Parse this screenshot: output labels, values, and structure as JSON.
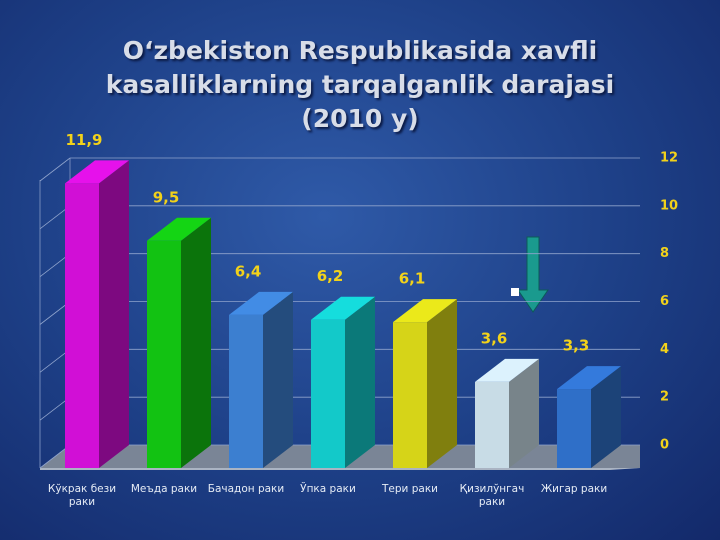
{
  "chart_data": {
    "type": "bar3d",
    "title": "O‘zbekiston Respublikasida xavfli kasalliklarning tarqalganlik darajasi",
    "subtitle": "(2010 y)",
    "categories": [
      "Кўкрак бези раки",
      "Меъда раки",
      "Бачадон раки",
      "Ўпка раки",
      "Тери раки",
      "Қизилўнгач раки",
      "Жигар раки"
    ],
    "values": [
      11.9,
      9.5,
      6.4,
      6.2,
      6.1,
      3.6,
      3.3
    ],
    "value_labels": [
      "11,9",
      "9,5",
      "6,4",
      "6,2",
      "6,1",
      "3,6",
      "3,3"
    ],
    "colors": [
      "#d10fd6",
      "#12c212",
      "#3c7fd0",
      "#13c9c9",
      "#d6d418",
      "#c8dce6",
      "#2f6fc8"
    ],
    "ylim": [
      0,
      12
    ],
    "yticks": [
      0,
      2,
      4,
      6,
      8,
      10,
      12
    ],
    "grid": true
  }
}
